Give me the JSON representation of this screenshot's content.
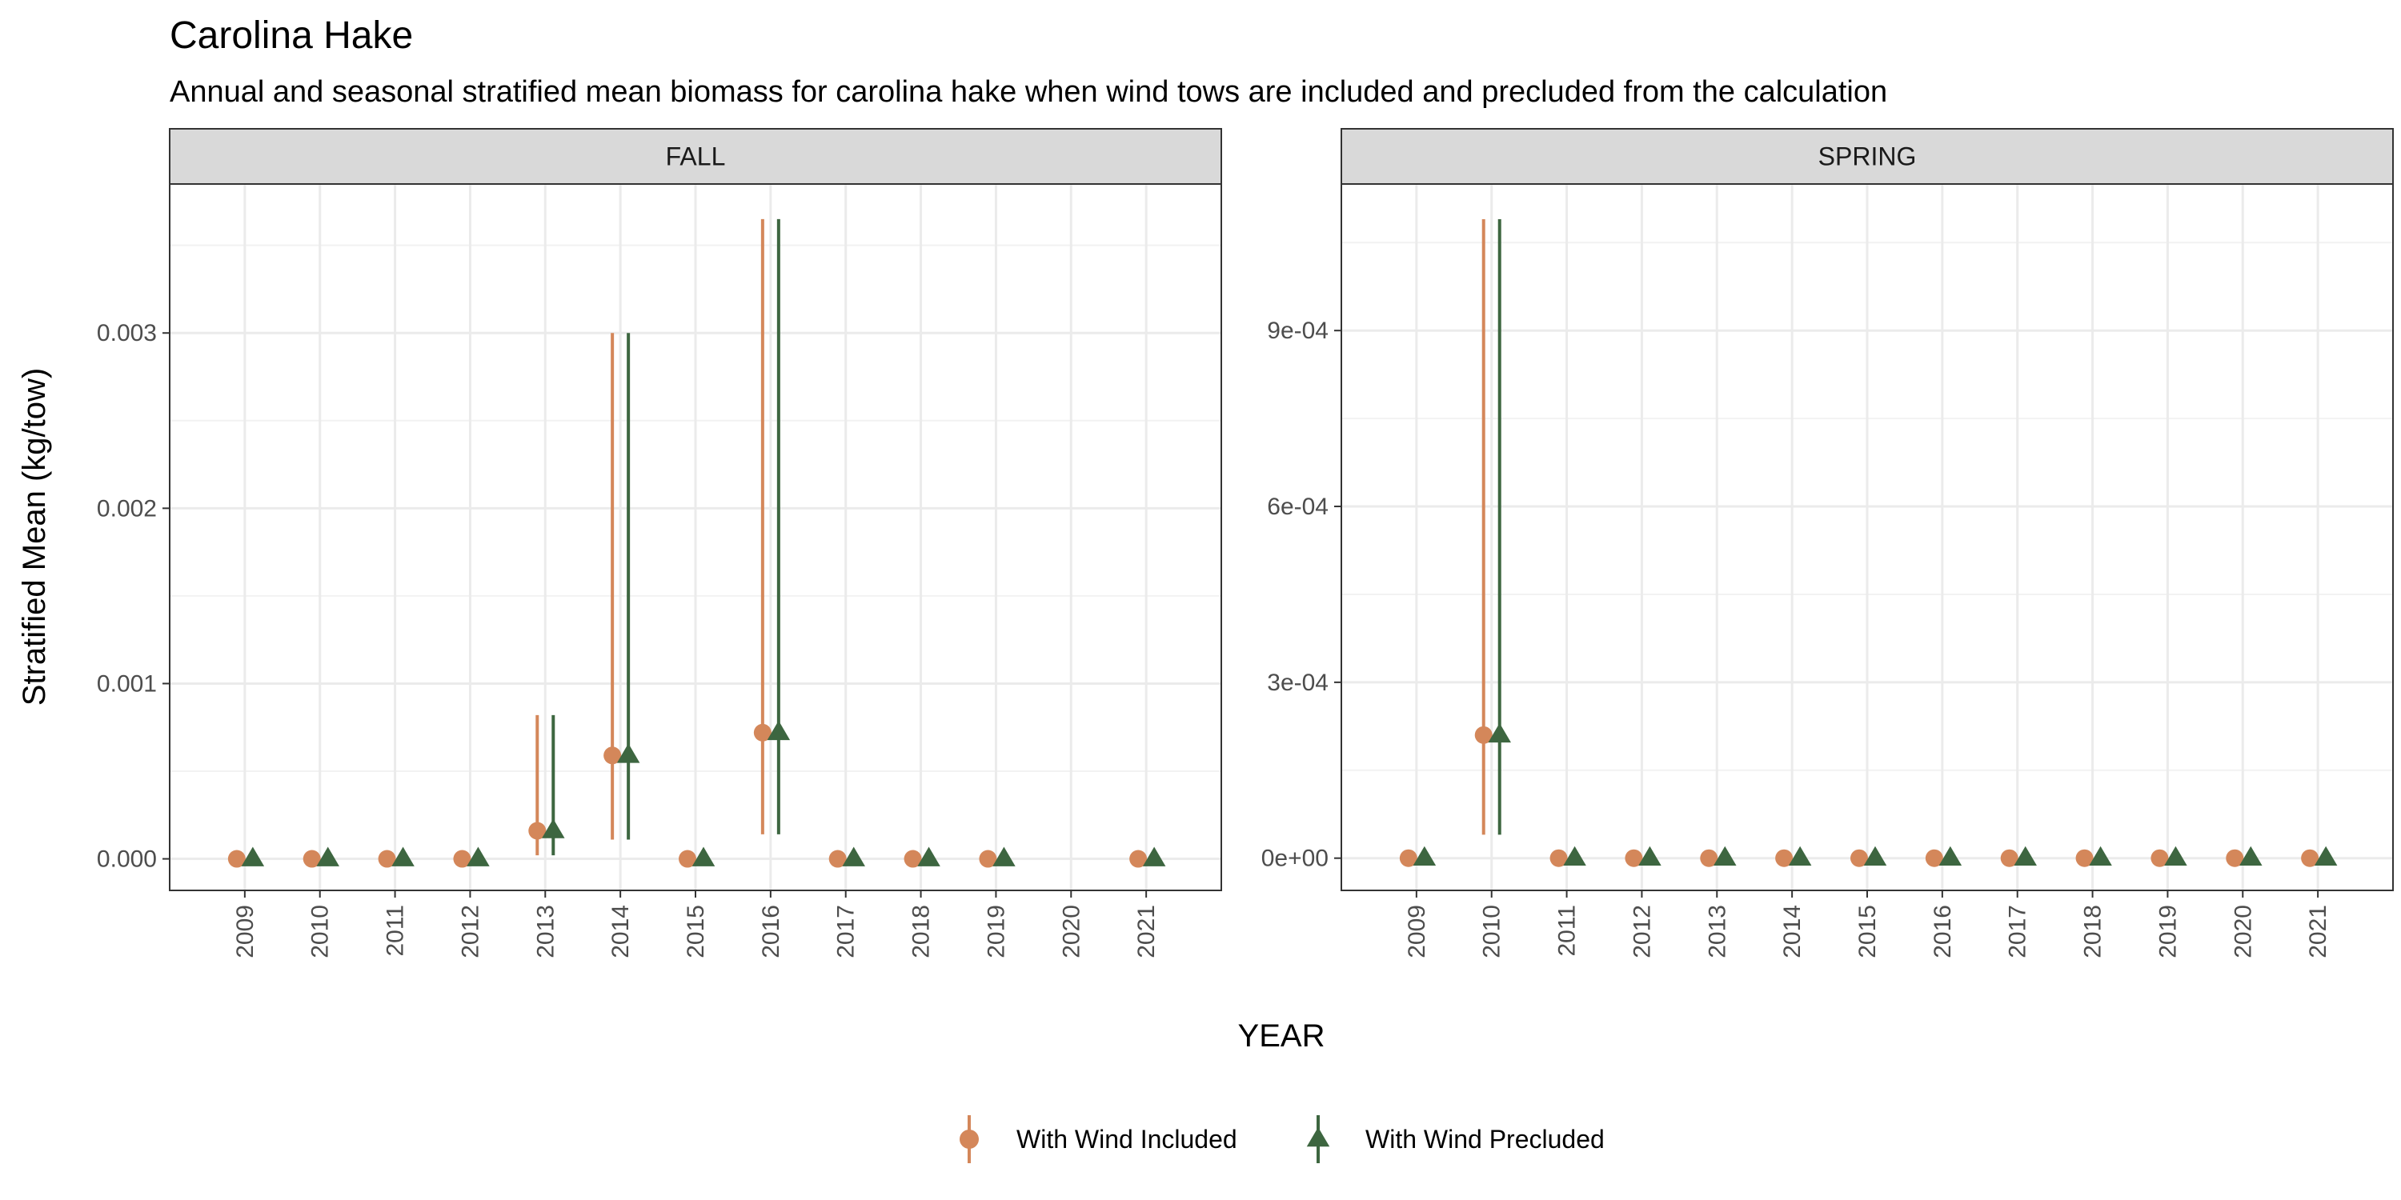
{
  "chart_data": {
    "type": "scatter",
    "title": "Carolina Hake",
    "subtitle": "Annual and seasonal stratified mean biomass for carolina hake when wind tows are included and precluded from the calculation",
    "xlabel": "YEAR",
    "ylabel": "Stratified Mean (kg/tow)",
    "categories": [
      "2009",
      "2010",
      "2011",
      "2012",
      "2013",
      "2014",
      "2015",
      "2016",
      "2017",
      "2018",
      "2019",
      "2020",
      "2021"
    ],
    "grid": true,
    "legend_position": "bottom",
    "legend": [
      {
        "name": "With Wind Included",
        "color": "#D4875A",
        "shape": "circle"
      },
      {
        "name": "With Wind Precluded",
        "color": "#3D6640",
        "shape": "triangle"
      }
    ],
    "panels": [
      {
        "label": "FALL",
        "ylim": [
          -0.00018,
          0.00385
        ],
        "yticks": [
          0,
          0.001,
          0.002,
          0.003
        ],
        "ytick_labels": [
          "0.000",
          "0.001",
          "0.002",
          "0.003"
        ],
        "series": [
          {
            "name": "With Wind Included",
            "points": [
              {
                "x": "2009",
                "y": 0
              },
              {
                "x": "2010",
                "y": 0
              },
              {
                "x": "2011",
                "y": 0
              },
              {
                "x": "2012",
                "y": 0
              },
              {
                "x": "2013",
                "y": 0.00016,
                "lo": 2e-05,
                "hi": 0.00082
              },
              {
                "x": "2014",
                "y": 0.00059,
                "lo": 0.00011,
                "hi": 0.003
              },
              {
                "x": "2015",
                "y": 0
              },
              {
                "x": "2016",
                "y": 0.00072,
                "lo": 0.00014,
                "hi": 0.00365
              },
              {
                "x": "2017",
                "y": 0
              },
              {
                "x": "2018",
                "y": 0
              },
              {
                "x": "2019",
                "y": 0
              },
              {
                "x": "2021",
                "y": 0
              }
            ]
          },
          {
            "name": "With Wind Precluded",
            "points": [
              {
                "x": "2009",
                "y": 0
              },
              {
                "x": "2010",
                "y": 0
              },
              {
                "x": "2011",
                "y": 0
              },
              {
                "x": "2012",
                "y": 0
              },
              {
                "x": "2013",
                "y": 0.00016,
                "lo": 2e-05,
                "hi": 0.00082
              },
              {
                "x": "2014",
                "y": 0.00059,
                "lo": 0.00011,
                "hi": 0.003
              },
              {
                "x": "2015",
                "y": 0
              },
              {
                "x": "2016",
                "y": 0.00072,
                "lo": 0.00014,
                "hi": 0.00365
              },
              {
                "x": "2017",
                "y": 0
              },
              {
                "x": "2018",
                "y": 0
              },
              {
                "x": "2019",
                "y": 0
              },
              {
                "x": "2021",
                "y": 0
              }
            ]
          }
        ]
      },
      {
        "label": "SPRING",
        "ylim": [
          -5.5e-05,
          0.00115
        ],
        "yticks": [
          0,
          0.0003,
          0.0006,
          0.0009
        ],
        "ytick_labels": [
          "0e+00",
          "3e-04",
          "6e-04",
          "9e-04"
        ],
        "series": [
          {
            "name": "With Wind Included",
            "points": [
              {
                "x": "2009",
                "y": 0
              },
              {
                "x": "2010",
                "y": 0.00021,
                "lo": 4e-05,
                "hi": 0.00109
              },
              {
                "x": "2011",
                "y": 0
              },
              {
                "x": "2012",
                "y": 0
              },
              {
                "x": "2013",
                "y": 0
              },
              {
                "x": "2014",
                "y": 0
              },
              {
                "x": "2015",
                "y": 0
              },
              {
                "x": "2016",
                "y": 0
              },
              {
                "x": "2017",
                "y": 0
              },
              {
                "x": "2018",
                "y": 0
              },
              {
                "x": "2019",
                "y": 0
              },
              {
                "x": "2020",
                "y": 0
              },
              {
                "x": "2021",
                "y": 0
              }
            ]
          },
          {
            "name": "With Wind Precluded",
            "points": [
              {
                "x": "2009",
                "y": 0
              },
              {
                "x": "2010",
                "y": 0.00021,
                "lo": 4e-05,
                "hi": 0.00109
              },
              {
                "x": "2011",
                "y": 0
              },
              {
                "x": "2012",
                "y": 0
              },
              {
                "x": "2013",
                "y": 0
              },
              {
                "x": "2014",
                "y": 0
              },
              {
                "x": "2015",
                "y": 0
              },
              {
                "x": "2016",
                "y": 0
              },
              {
                "x": "2017",
                "y": 0
              },
              {
                "x": "2018",
                "y": 0
              },
              {
                "x": "2019",
                "y": 0
              },
              {
                "x": "2020",
                "y": 0
              },
              {
                "x": "2021",
                "y": 0
              }
            ]
          }
        ]
      }
    ]
  }
}
